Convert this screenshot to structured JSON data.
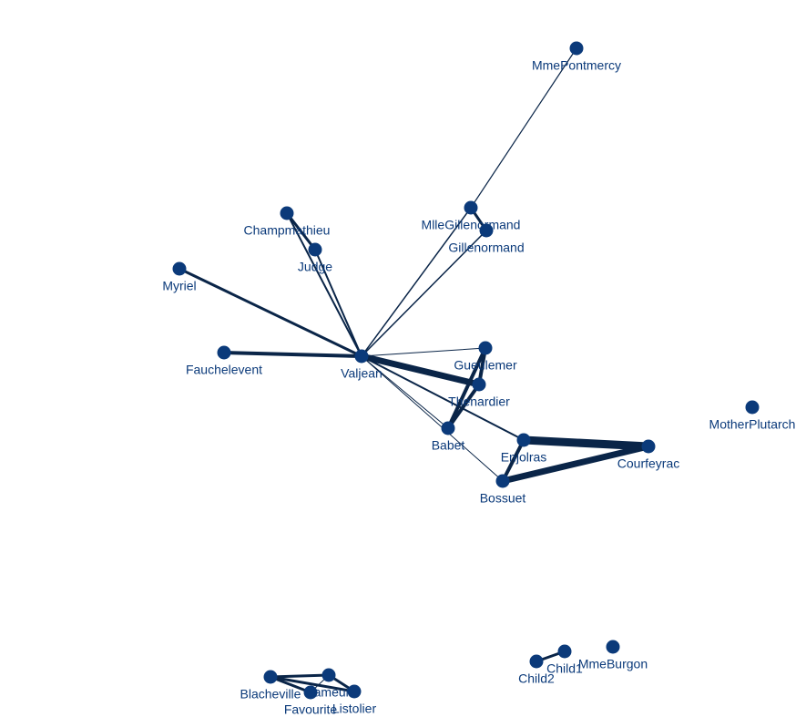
{
  "nodes": [
    {
      "label": "MmePontmercy"
    },
    {
      "label": "MlleGillenormand"
    },
    {
      "label": "Gillenormand"
    },
    {
      "label": "Champmathieu"
    },
    {
      "label": "Judge"
    },
    {
      "label": "Myriel"
    },
    {
      "label": "Fauchelevent"
    },
    {
      "label": "Valjean"
    },
    {
      "label": "Gueulemer"
    },
    {
      "label": "Thenardier"
    },
    {
      "label": "Babet"
    },
    {
      "label": "Enjolras"
    },
    {
      "label": "Courfeyrac"
    },
    {
      "label": "Bossuet"
    },
    {
      "label": "MotherPlutarch"
    },
    {
      "label": "MmeBurgon"
    },
    {
      "label": "Child1"
    },
    {
      "label": "Child2"
    },
    {
      "label": "Blacheville"
    },
    {
      "label": "Fameuil"
    },
    {
      "label": "Listolier"
    },
    {
      "label": "Favourite"
    }
  ],
  "edges": [
    {
      "source": "MmePontmercy",
      "target": "MlleGillenormand",
      "weight": 1.2
    },
    {
      "source": "MlleGillenormand",
      "target": "Gillenormand",
      "weight": 3
    },
    {
      "source": "Valjean",
      "target": "MlleGillenormand",
      "weight": 1.5
    },
    {
      "source": "Valjean",
      "target": "Gillenormand",
      "weight": 1.5
    },
    {
      "source": "Champmathieu",
      "target": "Judge",
      "weight": 3
    },
    {
      "source": "Valjean",
      "target": "Champmathieu",
      "weight": 2
    },
    {
      "source": "Valjean",
      "target": "Judge",
      "weight": 2
    },
    {
      "source": "Valjean",
      "target": "Myriel",
      "weight": 3
    },
    {
      "source": "Valjean",
      "target": "Fauchelevent",
      "weight": 4
    },
    {
      "source": "Valjean",
      "target": "Gueulemer",
      "weight": 1
    },
    {
      "source": "Valjean",
      "target": "Thenardier",
      "weight": 7
    },
    {
      "source": "Valjean",
      "target": "Babet",
      "weight": 1
    },
    {
      "source": "Valjean",
      "target": "Enjolras",
      "weight": 2
    },
    {
      "source": "Valjean",
      "target": "Bossuet",
      "weight": 1
    },
    {
      "source": "Gueulemer",
      "target": "Thenardier",
      "weight": 4
    },
    {
      "source": "Gueulemer",
      "target": "Babet",
      "weight": 4
    },
    {
      "source": "Thenardier",
      "target": "Babet",
      "weight": 4
    },
    {
      "source": "Enjolras",
      "target": "Courfeyrac",
      "weight": 9
    },
    {
      "source": "Bossuet",
      "target": "Courfeyrac",
      "weight": 7
    },
    {
      "source": "Enjolras",
      "target": "Bossuet",
      "weight": 4
    },
    {
      "source": "Child1",
      "target": "Child2",
      "weight": 3
    },
    {
      "source": "Blacheville",
      "target": "Fameuil",
      "weight": 3
    },
    {
      "source": "Blacheville",
      "target": "Listolier",
      "weight": 3
    },
    {
      "source": "Blacheville",
      "target": "Favourite",
      "weight": 3
    },
    {
      "source": "Fameuil",
      "target": "Listolier",
      "weight": 3
    },
    {
      "source": "Fameuil",
      "target": "Favourite",
      "weight": 1
    }
  ]
}
